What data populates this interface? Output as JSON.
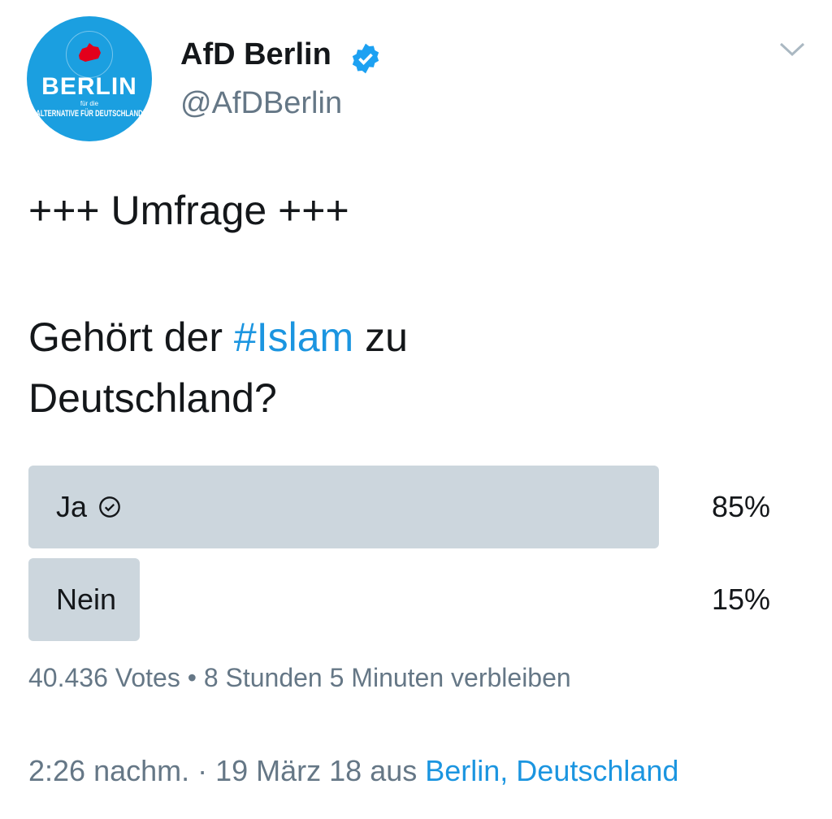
{
  "author": {
    "name": "AfD Berlin",
    "handle": "@AfDBerlin",
    "verified": true,
    "avatar": {
      "title": "BERLIN",
      "sub": "für die",
      "caption": "ALTERNATIVE FÜR DEUTSCHLAND",
      "bg": "#1b9fe0"
    }
  },
  "tweet": {
    "line1": "+++ Umfrage +++",
    "q_before": "Gehört der ",
    "hashtag": "#Islam",
    "q_after": " zu Deutschland?"
  },
  "poll": {
    "options": [
      {
        "label": "Ja",
        "percent_text": "85%",
        "percent": 85,
        "selected": true
      },
      {
        "label": "Nein",
        "percent_text": "15%",
        "percent": 15,
        "selected": false
      }
    ],
    "votes": "40.436 Votes",
    "separator": " • ",
    "remaining": "8 Stunden 5 Minuten verbleiben"
  },
  "timestamp": {
    "time": "2:26 nachm. · 19 März 18 aus ",
    "location": "Berlin, Deutschland"
  },
  "colors": {
    "accent": "#1b95e0",
    "bar": "#ccd6dd",
    "muted": "#657786"
  },
  "icons": [
    "verified-badge-icon",
    "chevron-down-icon",
    "check-circle-icon"
  ]
}
